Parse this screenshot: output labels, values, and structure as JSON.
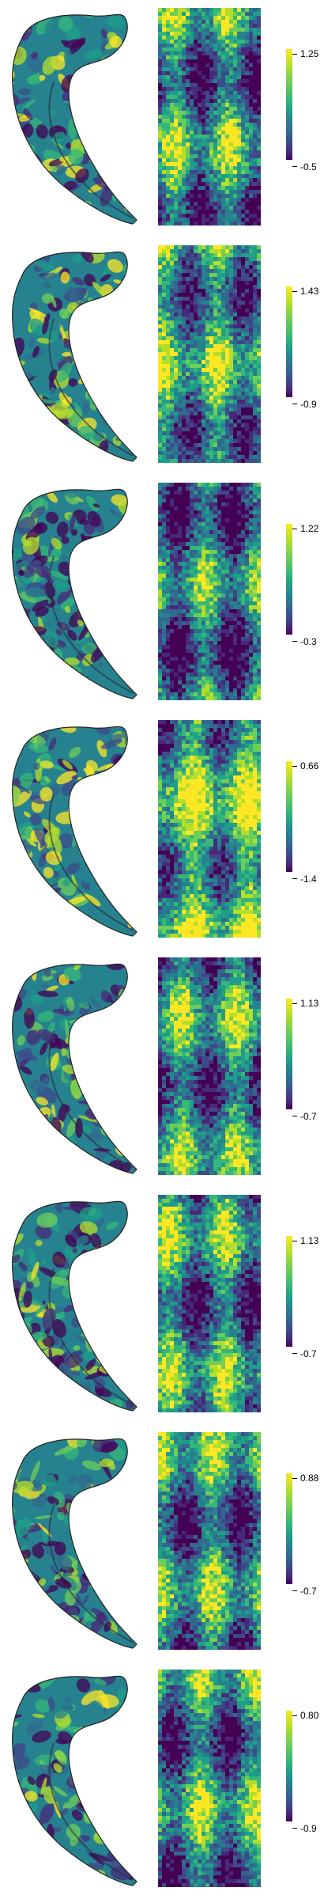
{
  "colormap": "viridis",
  "colormap_colors": [
    "#440154",
    "#482878",
    "#3e4989",
    "#31688e",
    "#26828e",
    "#1f9e89",
    "#35b779",
    "#6ece58",
    "#b5de2b",
    "#fde725"
  ],
  "panels": [
    {
      "colorbar_max": "1.25",
      "colorbar_min": "-0.5"
    },
    {
      "colorbar_max": "1.43",
      "colorbar_min": "-0.9"
    },
    {
      "colorbar_max": "1.22",
      "colorbar_min": "-0.3"
    },
    {
      "colorbar_max": "0.66",
      "colorbar_min": "-1.4"
    },
    {
      "colorbar_max": "1.13",
      "colorbar_min": "-0.7"
    },
    {
      "colorbar_max": "1.13",
      "colorbar_min": "-0.7"
    },
    {
      "colorbar_max": "0.88",
      "colorbar_min": "-0.7"
    },
    {
      "colorbar_max": "0.80",
      "colorbar_min": "-0.9"
    }
  ]
}
